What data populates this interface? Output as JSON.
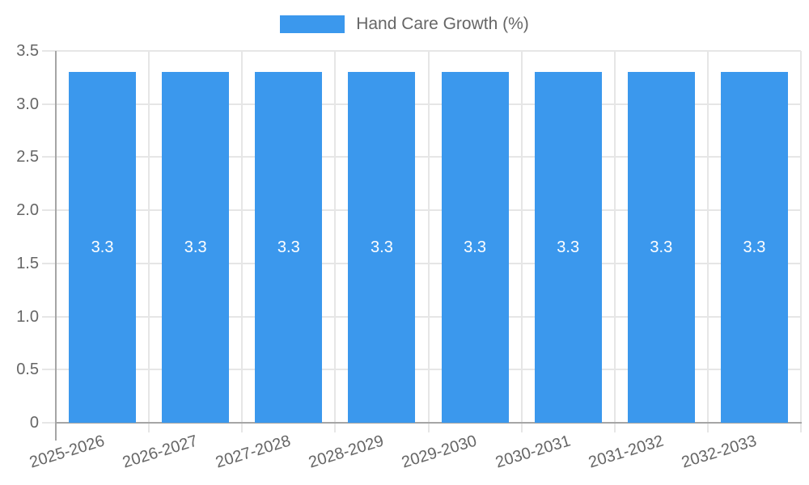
{
  "chart_data": {
    "type": "bar",
    "title": "",
    "categories": [
      "2025-2026",
      "2026-2027",
      "2027-2028",
      "2028-2029",
      "2029-2030",
      "2030-2031",
      "2031-2032",
      "2032-2033"
    ],
    "series": [
      {
        "name": "Hand Care Growth (%)",
        "values": [
          3.3,
          3.3,
          3.3,
          3.3,
          3.3,
          3.3,
          3.3,
          3.3
        ],
        "value_labels": [
          "3.3",
          "3.3",
          "3.3",
          "3.3",
          "3.3",
          "3.3",
          "3.3",
          "3.3"
        ]
      }
    ],
    "xlabel": "",
    "ylabel": "",
    "ylim": [
      0,
      3.5
    ],
    "ytick_step": 0.5,
    "ytick_labels": [
      "0",
      "0.5",
      "1.0",
      "1.5",
      "2.0",
      "2.5",
      "3.0",
      "3.5"
    ],
    "legend_position": "top",
    "grid": "on",
    "x_tick_rotation_deg": -17,
    "colors": {
      "bar_fill": "#3b98ed",
      "bar_value_label": "#ffffff",
      "tick_text": "#666666",
      "gridline": "#e6e6e6",
      "axis_line": "#a5a5a5",
      "background": "#ffffff"
    }
  }
}
